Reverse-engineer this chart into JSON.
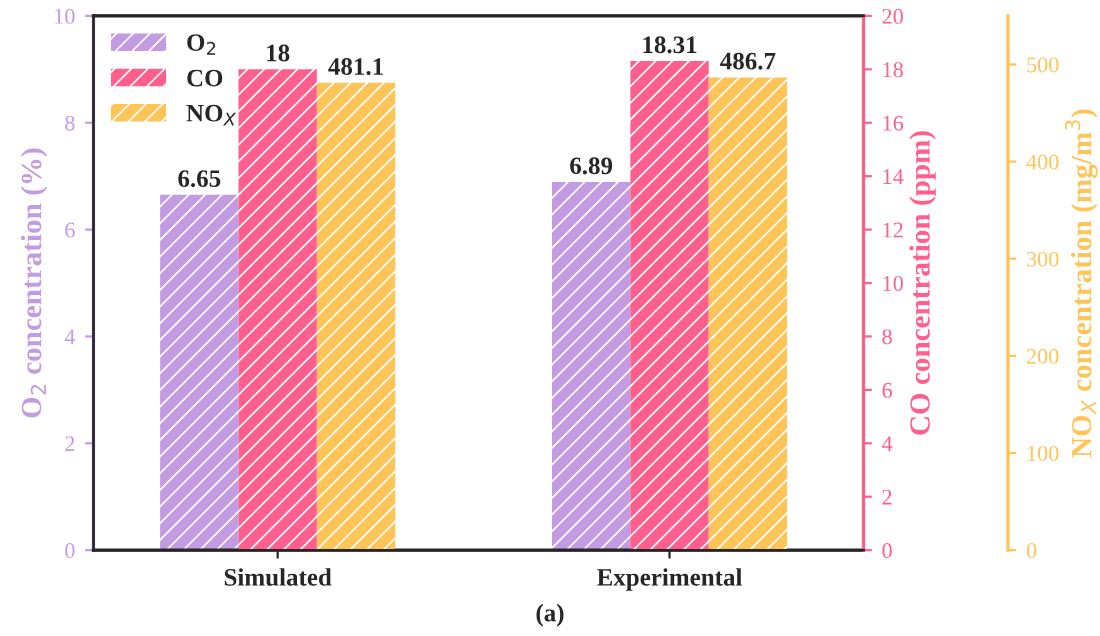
{
  "chart_data": {
    "type": "bar",
    "categories": [
      "Simulated",
      "Experimental"
    ],
    "ylabel": "O$_{2}$ concentration (%)",
    "y2label": "CO concentration (ppm)",
    "y3label": "NO$_{X}$ concentration (mg/m$^{3}$)",
    "series": [
      {
        "name": "O$_{2}$",
        "color": "#c39be3",
        "values": [
          6.65,
          6.89
        ],
        "axis": "y"
      },
      {
        "name": "CO",
        "color": "#ff5f8d",
        "values": [
          18,
          18.31
        ],
        "axis": "y2"
      },
      {
        "name": "NO$_{X}$",
        "color": "#ffc457",
        "values": [
          481.1,
          486.7
        ],
        "axis": "y3"
      }
    ],
    "ylim": [
      0,
      10
    ],
    "yticks": [
      0,
      2,
      4,
      6,
      8,
      10
    ],
    "y2lim": [
      0,
      20
    ],
    "y2ticks": [
      0,
      2,
      4,
      6,
      8,
      10,
      12,
      14,
      16,
      18,
      20
    ],
    "y3lim": [
      0,
      550
    ],
    "y3ticks": [
      0,
      100,
      200,
      300,
      400,
      500
    ],
    "data_labels": true,
    "legend": "top left",
    "grid": false,
    "annotations": [
      "(a)"
    ]
  }
}
